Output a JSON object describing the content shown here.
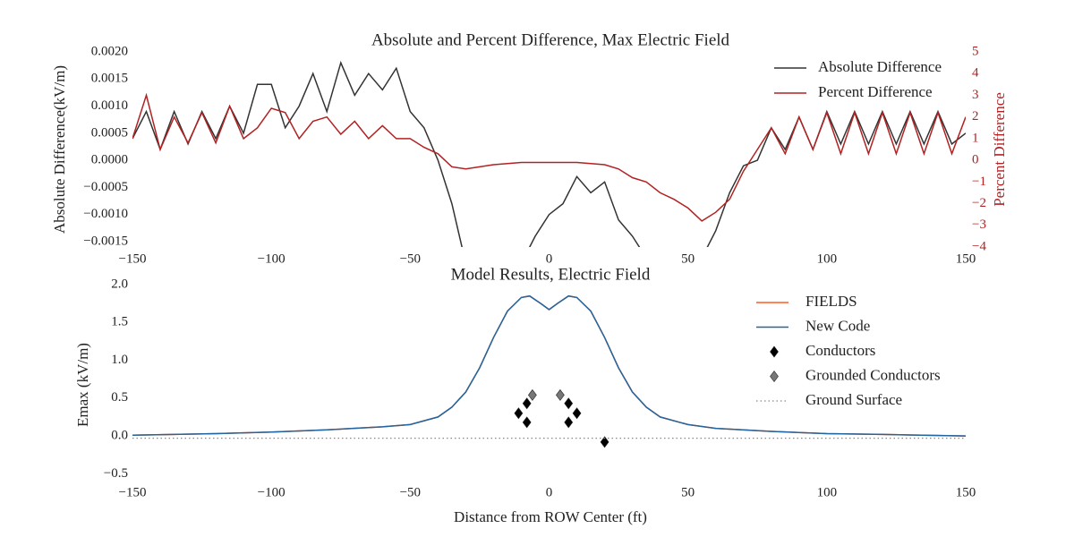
{
  "chart_data": [
    {
      "type": "line",
      "title": "Absolute and Percent Difference, Max Electric Field",
      "ylabel": "Absolute Difference(kV/m)",
      "y2label": "Percent Difference",
      "y2color": "#b22222",
      "legend": "upper right",
      "xlim": [
        -150,
        150
      ],
      "xticks": [
        {
          "value": -150,
          "label": "−150"
        },
        {
          "value": -100,
          "label": "−100"
        },
        {
          "value": -50,
          "label": "−50"
        },
        0,
        50,
        100,
        150
      ],
      "ylim": [
        -0.0016,
        0.002
      ],
      "yticks": [
        {
          "value": 0.002,
          "label": "0.0020"
        },
        {
          "value": 0.0015,
          "label": "0.0015"
        },
        {
          "value": 0.001,
          "label": "0.0010"
        },
        {
          "value": 0.0005,
          "label": "0.0005"
        },
        {
          "value": 0,
          "label": "0.0000"
        },
        {
          "value": -0.0005,
          "label": "−0.0005"
        },
        {
          "value": -0.001,
          "label": "−0.0010"
        },
        {
          "value": -0.0015,
          "label": "−0.0015"
        }
      ],
      "y2lim": [
        -4,
        5
      ],
      "y2ticks": [
        5,
        4,
        3,
        2,
        1,
        0,
        {
          "value": -1,
          "label": "−1"
        },
        {
          "value": -2,
          "label": "−2"
        },
        {
          "value": -3,
          "label": "−3"
        },
        {
          "value": -4,
          "label": "−4"
        }
      ],
      "x": [
        -150,
        -145,
        -140,
        -135,
        -130,
        -125,
        -120,
        -115,
        -110,
        -105,
        -100,
        -95,
        -90,
        -85,
        -80,
        -75,
        -70,
        -65,
        -60,
        -55,
        -50,
        -45,
        -40,
        -35,
        -30,
        -25,
        -20,
        -15,
        -10,
        -5,
        0,
        5,
        10,
        15,
        20,
        25,
        30,
        35,
        40,
        45,
        50,
        55,
        60,
        65,
        70,
        75,
        80,
        85,
        90,
        95,
        100,
        105,
        110,
        115,
        120,
        125,
        130,
        135,
        140,
        145,
        150
      ],
      "series": [
        {
          "name": "Absolute Difference",
          "color": "#333333",
          "mark": "line",
          "values": [
            0.0004,
            0.0009,
            0.0002,
            0.0009,
            0.0003,
            0.0009,
            0.0004,
            0.001,
            0.0005,
            0.0014,
            0.0014,
            0.0006,
            0.001,
            0.0016,
            0.0009,
            0.0018,
            0.0012,
            0.0016,
            0.0013,
            0.0017,
            0.0009,
            0.0006,
            0.0,
            -0.0008,
            -0.0019,
            -0.0018,
            -0.0019,
            -0.0018,
            -0.0019,
            -0.0014,
            -0.001,
            -0.0008,
            -0.0003,
            -0.0006,
            -0.0004,
            -0.0011,
            -0.0014,
            -0.0018,
            -0.0019,
            -0.0018,
            -0.0019,
            -0.0018,
            -0.0013,
            -0.0006,
            -0.0001,
            0.0,
            0.0006,
            0.0002,
            0.0008,
            0.0002,
            0.0009,
            0.0003,
            0.0009,
            0.0003,
            0.0009,
            0.0003,
            0.0009,
            0.0003,
            0.0009,
            0.0003,
            0.0005
          ]
        },
        {
          "name": "Percent Difference",
          "color": "#b22222",
          "mark": "line",
          "axis": "y2",
          "values": [
            1.0,
            3.0,
            0.5,
            2.0,
            0.8,
            2.2,
            0.8,
            2.5,
            1.0,
            1.5,
            2.4,
            2.2,
            1.0,
            1.8,
            2.0,
            1.2,
            1.8,
            1.0,
            1.6,
            1.0,
            1.0,
            0.6,
            0.3,
            -0.3,
            -0.4,
            -0.3,
            -0.2,
            -0.15,
            -0.1,
            -0.1,
            -0.1,
            -0.1,
            -0.1,
            -0.15,
            -0.2,
            -0.4,
            -0.8,
            -1.0,
            -1.5,
            -1.8,
            -2.2,
            -2.8,
            -2.4,
            -1.8,
            -0.5,
            0.5,
            1.5,
            0.3,
            2.0,
            0.5,
            2.2,
            0.3,
            2.2,
            0.3,
            2.2,
            0.3,
            2.2,
            0.3,
            2.2,
            0.3,
            2.0
          ]
        }
      ]
    },
    {
      "type": "line",
      "title": "Model Results, Electric Field",
      "xlabel": "Distance from ROW Center (ft)",
      "ylabel": "Emax (kV/m)",
      "legend": "upper right",
      "xlim": [
        -150,
        150
      ],
      "xticks": [
        {
          "value": -150,
          "label": "−150"
        },
        {
          "value": -100,
          "label": "−100"
        },
        {
          "value": -50,
          "label": "−50"
        },
        0,
        50,
        100,
        150
      ],
      "ylim": [
        -0.65,
        2.0
      ],
      "yticks": [
        {
          "value": 2.0,
          "label": "2.0"
        },
        {
          "value": 1.5,
          "label": "1.5"
        },
        {
          "value": 1.0,
          "label": "1.0"
        },
        {
          "value": 0.5,
          "label": "0.5"
        },
        {
          "value": 0.0,
          "label": "0.0"
        },
        {
          "value": -0.5,
          "label": "−0.5"
        }
      ],
      "series": [
        {
          "name": "FIELDS",
          "color": "#ff5a1f",
          "mark": "line",
          "x": [
            -150,
            -120,
            -100,
            -80,
            -60,
            -50,
            -40,
            -35,
            -30,
            -25,
            -20,
            -15,
            -10,
            -7,
            -3,
            0,
            3,
            7,
            10,
            15,
            20,
            25,
            30,
            35,
            40,
            50,
            60,
            80,
            100,
            120,
            150
          ],
          "values": [
            0.01,
            0.03,
            0.05,
            0.08,
            0.12,
            0.15,
            0.25,
            0.38,
            0.58,
            0.9,
            1.3,
            1.65,
            1.83,
            1.85,
            1.75,
            1.67,
            1.75,
            1.85,
            1.83,
            1.65,
            1.3,
            0.9,
            0.58,
            0.38,
            0.25,
            0.15,
            0.1,
            0.06,
            0.03,
            0.02,
            0.0
          ]
        },
        {
          "name": "New Code",
          "color": "#2166a0",
          "mark": "line",
          "x": [
            -150,
            -120,
            -100,
            -80,
            -60,
            -50,
            -40,
            -35,
            -30,
            -25,
            -20,
            -15,
            -10,
            -7,
            -3,
            0,
            3,
            7,
            10,
            15,
            20,
            25,
            30,
            35,
            40,
            50,
            60,
            80,
            100,
            120,
            150
          ],
          "values": [
            0.01,
            0.03,
            0.05,
            0.08,
            0.12,
            0.15,
            0.25,
            0.38,
            0.58,
            0.9,
            1.3,
            1.65,
            1.83,
            1.85,
            1.75,
            1.67,
            1.75,
            1.85,
            1.83,
            1.65,
            1.3,
            0.9,
            0.58,
            0.38,
            0.25,
            0.15,
            0.1,
            0.06,
            0.03,
            0.02,
            0.0
          ]
        },
        {
          "name": "Conductors",
          "color": "#000000",
          "mark": "diamond",
          "x": [
            -11,
            -8,
            -8,
            7,
            10,
            7,
            20
          ],
          "values": [
            0.3,
            0.43,
            0.18,
            0.43,
            0.3,
            0.18,
            -0.08
          ]
        },
        {
          "name": "Grounded Conductors",
          "color": "#777777",
          "mark": "diamond",
          "x": [
            -6,
            4
          ],
          "values": [
            0.54,
            0.54
          ]
        },
        {
          "name": "Ground Surface",
          "color": "#888888",
          "mark": "dotted",
          "x": [
            -150,
            150
          ],
          "values": [
            -0.03,
            -0.03
          ]
        }
      ]
    }
  ]
}
